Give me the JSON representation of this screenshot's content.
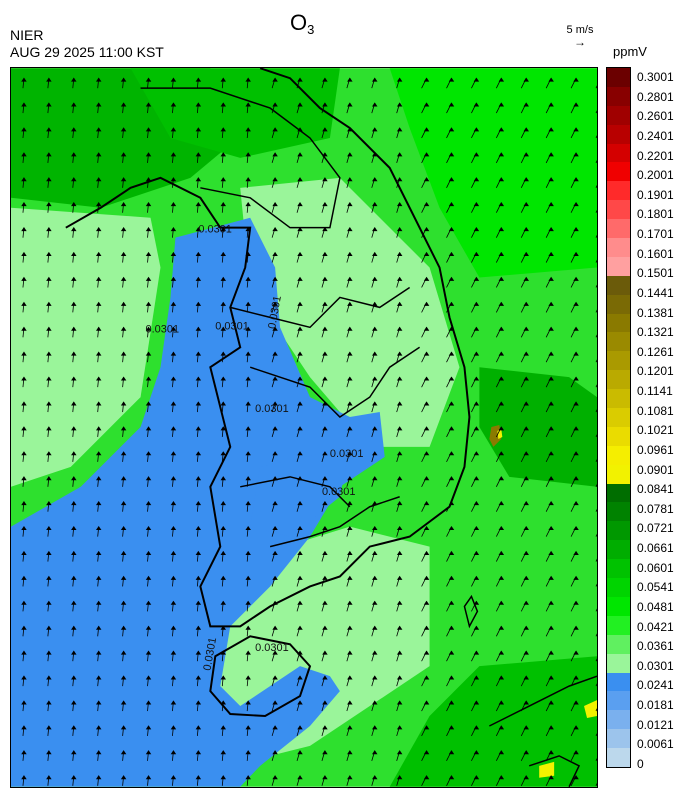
{
  "header": {
    "agency": "NIER",
    "timestamp": "AUG 29 2025 11:00 KST",
    "species": "O",
    "species_subscript": "3",
    "wind_scale_label": "5 m/s",
    "unit": "ppmV"
  },
  "legend": {
    "ticks": [
      "0.3001",
      "0.2801",
      "0.2601",
      "0.2401",
      "0.2201",
      "0.2001",
      "0.1901",
      "0.1801",
      "0.1701",
      "0.1601",
      "0.1501",
      "0.1441",
      "0.1381",
      "0.1321",
      "0.1261",
      "0.1201",
      "0.1141",
      "0.1081",
      "0.1021",
      "0.0961",
      "0.0901",
      "0.0841",
      "0.0781",
      "0.0721",
      "0.0661",
      "0.0601",
      "0.0541",
      "0.0481",
      "0.0421",
      "0.0361",
      "0.0301",
      "0.0241",
      "0.0181",
      "0.0121",
      "0.0061",
      "0"
    ],
    "colors": [
      "#6b0000",
      "#880000",
      "#a00000",
      "#b80000",
      "#d40000",
      "#f00000",
      "#ff2a2a",
      "#ff4848",
      "#ff6a6a",
      "#ff8c8c",
      "#ffa0a0",
      "#6b5b0a",
      "#7a6a05",
      "#8a7a00",
      "#9a8a00",
      "#aa9a00",
      "#baaa00",
      "#cabb00",
      "#dacc00",
      "#eadc00",
      "#f5ee00",
      "#f2f200",
      "#006e00",
      "#008200",
      "#009800",
      "#00ad00",
      "#00c200",
      "#00d400",
      "#00e600",
      "#22f022",
      "#60f060",
      "#9af59a",
      "#3a8ff0",
      "#5a9ff0",
      "#7ab0ee",
      "#9cc4ec",
      "#bcd8ec"
    ]
  },
  "map": {
    "contour_labels": [
      "0.0301",
      "0.0301",
      "0.0301",
      "0.0301",
      "0.0301",
      "0.0301",
      "0.0301",
      "0.0301",
      "0.0301"
    ],
    "colors": {
      "light_green": "#9af59a",
      "green": "#2ee02e",
      "bright_green": "#00e600",
      "dark_green": "#00a800",
      "blue": "#3a8ff0",
      "olive": "#8a7a00",
      "yellow": "#f2f200"
    }
  }
}
